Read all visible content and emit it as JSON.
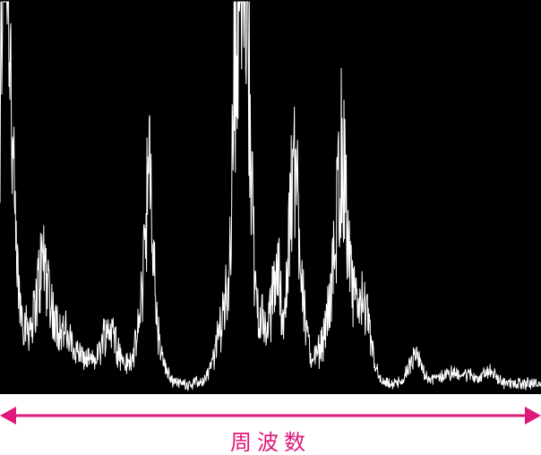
{
  "colors": {
    "background": "#000000",
    "trace": "#ffffff",
    "axis_accent": "#e0187a"
  },
  "chart_data": {
    "type": "line",
    "title": "",
    "xlabel": "周波数",
    "ylabel": "",
    "xlim": [
      0,
      100
    ],
    "ylim": [
      0,
      100
    ],
    "grid": false,
    "legend": "none",
    "x_axis_arrow": "double-headed",
    "noise_floor": 2,
    "peaks": [
      {
        "x": 0.8,
        "y": 99,
        "width": 0.6
      },
      {
        "x": 1.4,
        "y": 62,
        "width": 0.8
      },
      {
        "x": 2.3,
        "y": 22,
        "width": 1.2
      },
      {
        "x": 5.5,
        "y": 14,
        "width": 2.5
      },
      {
        "x": 8.0,
        "y": 20,
        "width": 1.0
      },
      {
        "x": 10.5,
        "y": 12,
        "width": 2.0
      },
      {
        "x": 14.5,
        "y": 7,
        "width": 2.5
      },
      {
        "x": 20.3,
        "y": 15,
        "width": 1.6
      },
      {
        "x": 27.5,
        "y": 38,
        "width": 0.8
      },
      {
        "x": 27.2,
        "y": 18,
        "width": 2.0
      },
      {
        "x": 41.5,
        "y": 7,
        "width": 1.5
      },
      {
        "x": 43.8,
        "y": 67,
        "width": 0.7
      },
      {
        "x": 44.8,
        "y": 57,
        "width": 0.6
      },
      {
        "x": 45.8,
        "y": 66,
        "width": 0.6
      },
      {
        "x": 44.6,
        "y": 30,
        "width": 2.6
      },
      {
        "x": 49.0,
        "y": 8,
        "width": 1.5
      },
      {
        "x": 51.2,
        "y": 23,
        "width": 0.8
      },
      {
        "x": 54.0,
        "y": 34,
        "width": 0.7
      },
      {
        "x": 55.2,
        "y": 27,
        "width": 0.8
      },
      {
        "x": 54.5,
        "y": 14,
        "width": 2.2
      },
      {
        "x": 61.5,
        "y": 8,
        "width": 2.0
      },
      {
        "x": 63.2,
        "y": 38,
        "width": 0.9
      },
      {
        "x": 63.0,
        "y": 20,
        "width": 2.2
      },
      {
        "x": 66.5,
        "y": 12,
        "width": 1.2
      },
      {
        "x": 67.8,
        "y": 10,
        "width": 1.2
      },
      {
        "x": 76.8,
        "y": 7,
        "width": 1.2
      },
      {
        "x": 82.5,
        "y": 2,
        "width": 2.5
      },
      {
        "x": 86.0,
        "y": 2,
        "width": 2.0
      },
      {
        "x": 90.5,
        "y": 3,
        "width": 1.2
      }
    ]
  }
}
